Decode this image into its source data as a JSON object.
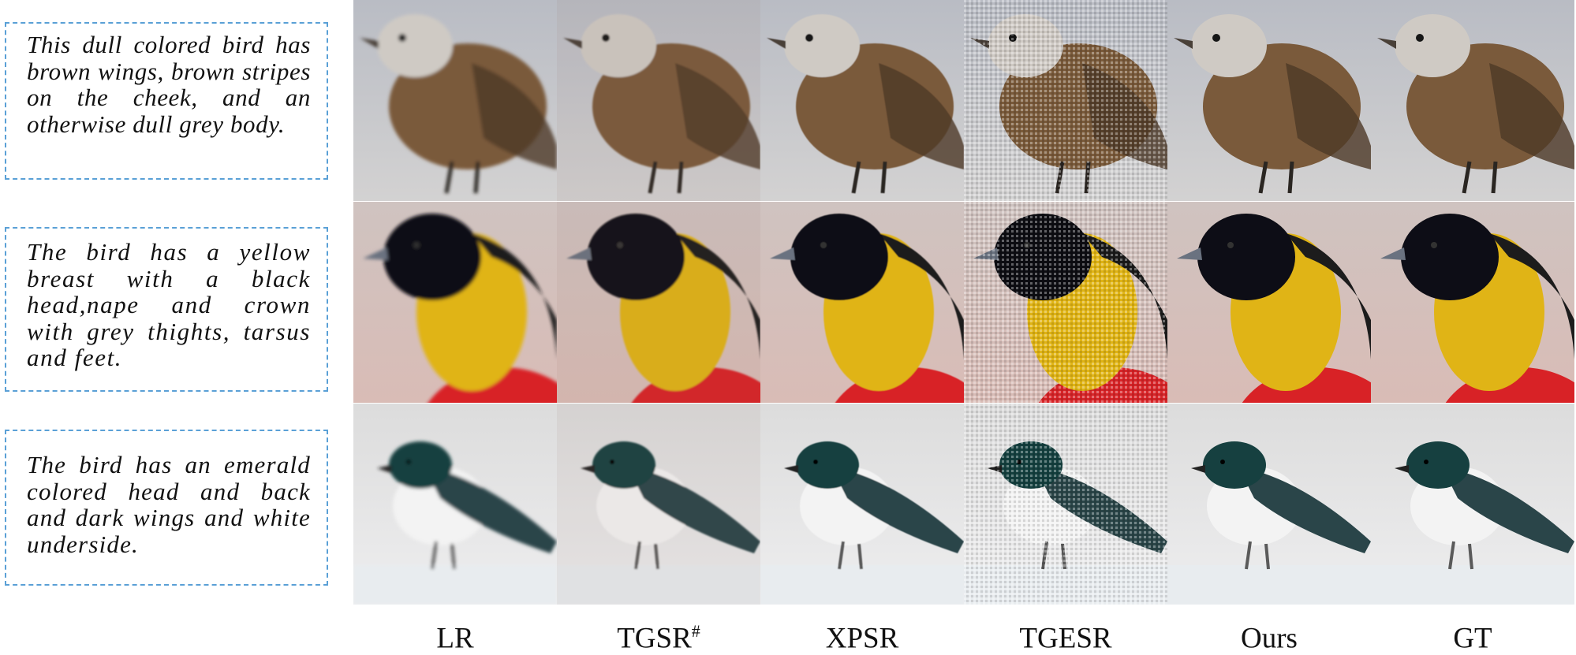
{
  "captions": [
    "This dull colored bird has brown wings, brown stripes on the cheek, and an otherwise dull grey body.",
    "The bird has a yellow breast with a black head,nape and crown with grey thights, tarsus and feet.",
    "The bird has an emerald colored head and back and dark wings and white underside."
  ],
  "columns": [
    {
      "label": "LR",
      "sup": ""
    },
    {
      "label": "TGSR",
      "sup": "#"
    },
    {
      "label": "XPSR",
      "sup": ""
    },
    {
      "label": "TGESR",
      "sup": ""
    },
    {
      "label": "Ours",
      "sup": ""
    },
    {
      "label": "GT",
      "sup": ""
    }
  ],
  "rows": [
    {
      "bird": "sparrow",
      "bg_top": "#b9bcc4",
      "bg_bottom": "#d3d2d2",
      "body": "#7a5a3a",
      "head": "#cfcac4",
      "accent": "#4e3a28"
    },
    {
      "bird": "oriole",
      "bg_top": "#cfc3c0",
      "bg_bottom": "#d9bcb6",
      "body": "#e0b414",
      "head": "#0d0d12",
      "accent": "#d82428"
    },
    {
      "bird": "swallow",
      "bg_top": "#dcdcdc",
      "bg_bottom": "#eeeeef",
      "body": "#f3f3f3",
      "head": "#14403f",
      "accent": "#2a4548"
    }
  ]
}
